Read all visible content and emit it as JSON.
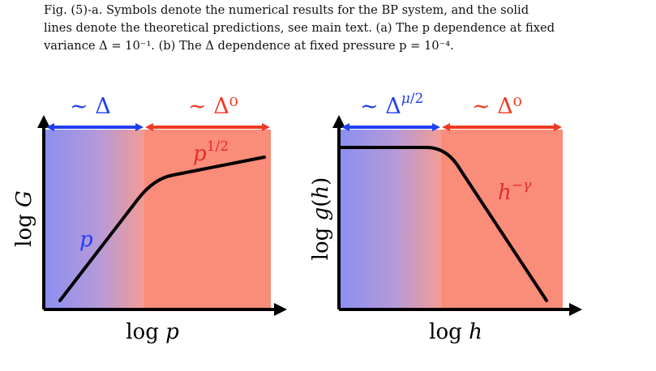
{
  "caption": {
    "line1": "Fig. (5)-a. Symbols denote the numerical results for the BP system, and the solid",
    "line2": "lines denote the theoretical predictions, see main text. (a) The p dependence at fixed",
    "line3": "variance Δ = 10⁻¹. (b) The Δ dependence at fixed pressure p = 10⁻⁴."
  },
  "colors": {
    "blue_region": "#8a8ff2",
    "red_region": "#fa8c7a",
    "blue_arrow": "#1f3ff0",
    "red_arrow": "#f03a22",
    "curve": "#000000",
    "blue_label": "#1f3ff0",
    "red_label": "#e0302a"
  },
  "left_panel": {
    "top_left_label": "∼ Δ",
    "top_right_label": "∼ Δ⁰",
    "ylabel": "log G",
    "xlabel": "log p",
    "curve_label_low": "p",
    "curve_label_high": "p^{1/2}"
  },
  "right_panel": {
    "top_left_label": "∼ Δ^{μ/2}",
    "top_right_label": "∼ Δ⁰",
    "ylabel": "log g(h)",
    "xlabel": "log h",
    "curve_label_high": "h^{−γ}"
  }
}
